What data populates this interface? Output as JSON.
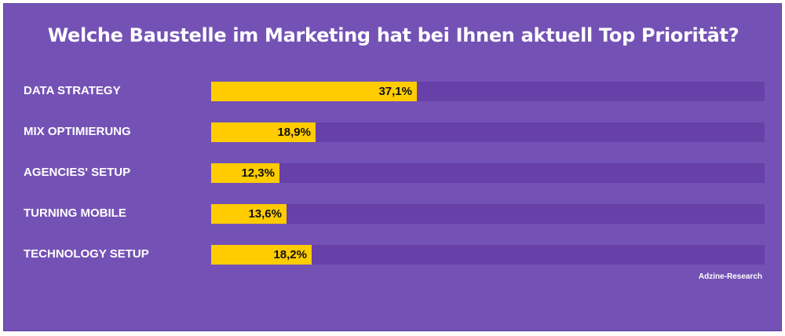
{
  "chart_data": {
    "type": "bar",
    "orientation": "horizontal",
    "title": "Welche Baustelle im Marketing hat bei Ihnen aktuell Top Priorität?",
    "categories": [
      "DATA STRATEGY",
      "MIX OPTIMIERUNG",
      "AGENCIES' SETUP",
      "TURNING MOBILE",
      "TECHNOLOGY SETUP"
    ],
    "values": [
      37.1,
      18.9,
      12.3,
      13.6,
      18.2
    ],
    "value_labels": [
      "37,1%",
      "18,9%",
      "12,3%",
      "13,6%",
      "18,2%"
    ],
    "xlim": [
      0,
      100
    ],
    "grid": false,
    "legend": "none",
    "source": "Adzine-Research"
  },
  "colors": {
    "background": "#7452b5",
    "track": "#6740a8",
    "bar": "#ffcc00",
    "text": "#ffffff",
    "value_text": "#111111"
  }
}
